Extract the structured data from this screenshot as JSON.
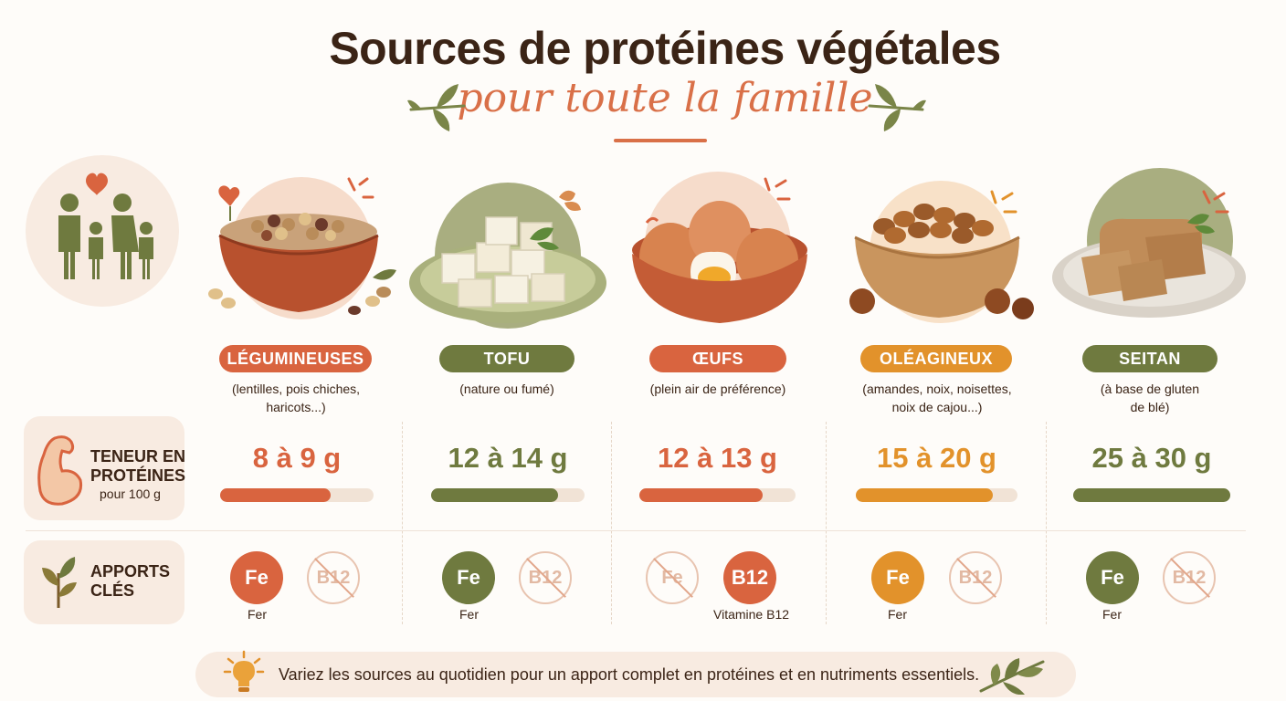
{
  "header": {
    "title": "Sources de protéines végétales",
    "subtitle": "pour toute la famille"
  },
  "colors": {
    "orange_red": "#d9643f",
    "olive": "#6f7a3f",
    "orange": "#e2922b",
    "cream": "#f8ebe1",
    "brown_text": "#3b2416"
  },
  "foods": [
    {
      "name": "LÉGUMINEUSES",
      "desc_line1": "(lentilles, pois chiches,",
      "desc_line2": "haricots...)",
      "amount": "8 à 9 g",
      "fill": 0.72,
      "color": "#d9643f",
      "nutrients": [
        {
          "symbol": "Fe",
          "present": true,
          "label": "Fer"
        },
        {
          "symbol": "B12",
          "present": false,
          "label": ""
        }
      ]
    },
    {
      "name": "TOFU",
      "desc_line1": "(nature ou fumé)",
      "desc_line2": "",
      "amount": "12 à 14 g",
      "fill": 0.83,
      "color": "#6f7a3f",
      "nutrients": [
        {
          "symbol": "Fe",
          "present": true,
          "label": "Fer"
        },
        {
          "symbol": "B12",
          "present": false,
          "label": ""
        }
      ]
    },
    {
      "name": "ŒUFS",
      "desc_line1": "(plein air de préférence)",
      "desc_line2": "",
      "amount": "12 à 13 g",
      "fill": 0.79,
      "color": "#d9643f",
      "nutrients": [
        {
          "symbol": "Fe",
          "present": false,
          "label": ""
        },
        {
          "symbol": "B12",
          "present": true,
          "label": "Vitamine B12"
        }
      ]
    },
    {
      "name": "OLÉAGINEUX",
      "desc_line1": "(amandes, noix, noisettes,",
      "desc_line2": "noix de cajou...)",
      "amount": "15 à 20 g",
      "fill": 0.85,
      "color": "#e2922b",
      "nutrients": [
        {
          "symbol": "Fe",
          "present": true,
          "label": "Fer"
        },
        {
          "symbol": "B12",
          "present": false,
          "label": ""
        }
      ]
    },
    {
      "name": "SEITAN",
      "desc_line1": "(à base de gluten",
      "desc_line2": "de blé)",
      "amount": "25 à 30 g",
      "fill": 1.0,
      "color": "#6f7a3f",
      "nutrients": [
        {
          "symbol": "Fe",
          "present": true,
          "label": "Fer"
        },
        {
          "symbol": "B12",
          "present": false,
          "label": ""
        }
      ]
    }
  ],
  "rows": {
    "protein_label_1": "TENEUR EN",
    "protein_label_2": "PROTÉINES",
    "protein_label_sub": "pour 100 g",
    "nutrients_label_1": "APPORTS",
    "nutrients_label_2": "CLÉS"
  },
  "footer": {
    "text": "Variez les sources au quotidien pour un apport complet en protéines et en nutriments essentiels."
  },
  "icons": [
    "family-icon",
    "heart-icon",
    "flexed-arm-icon",
    "leaf-icon",
    "lightbulb-icon",
    "branch-icon"
  ]
}
